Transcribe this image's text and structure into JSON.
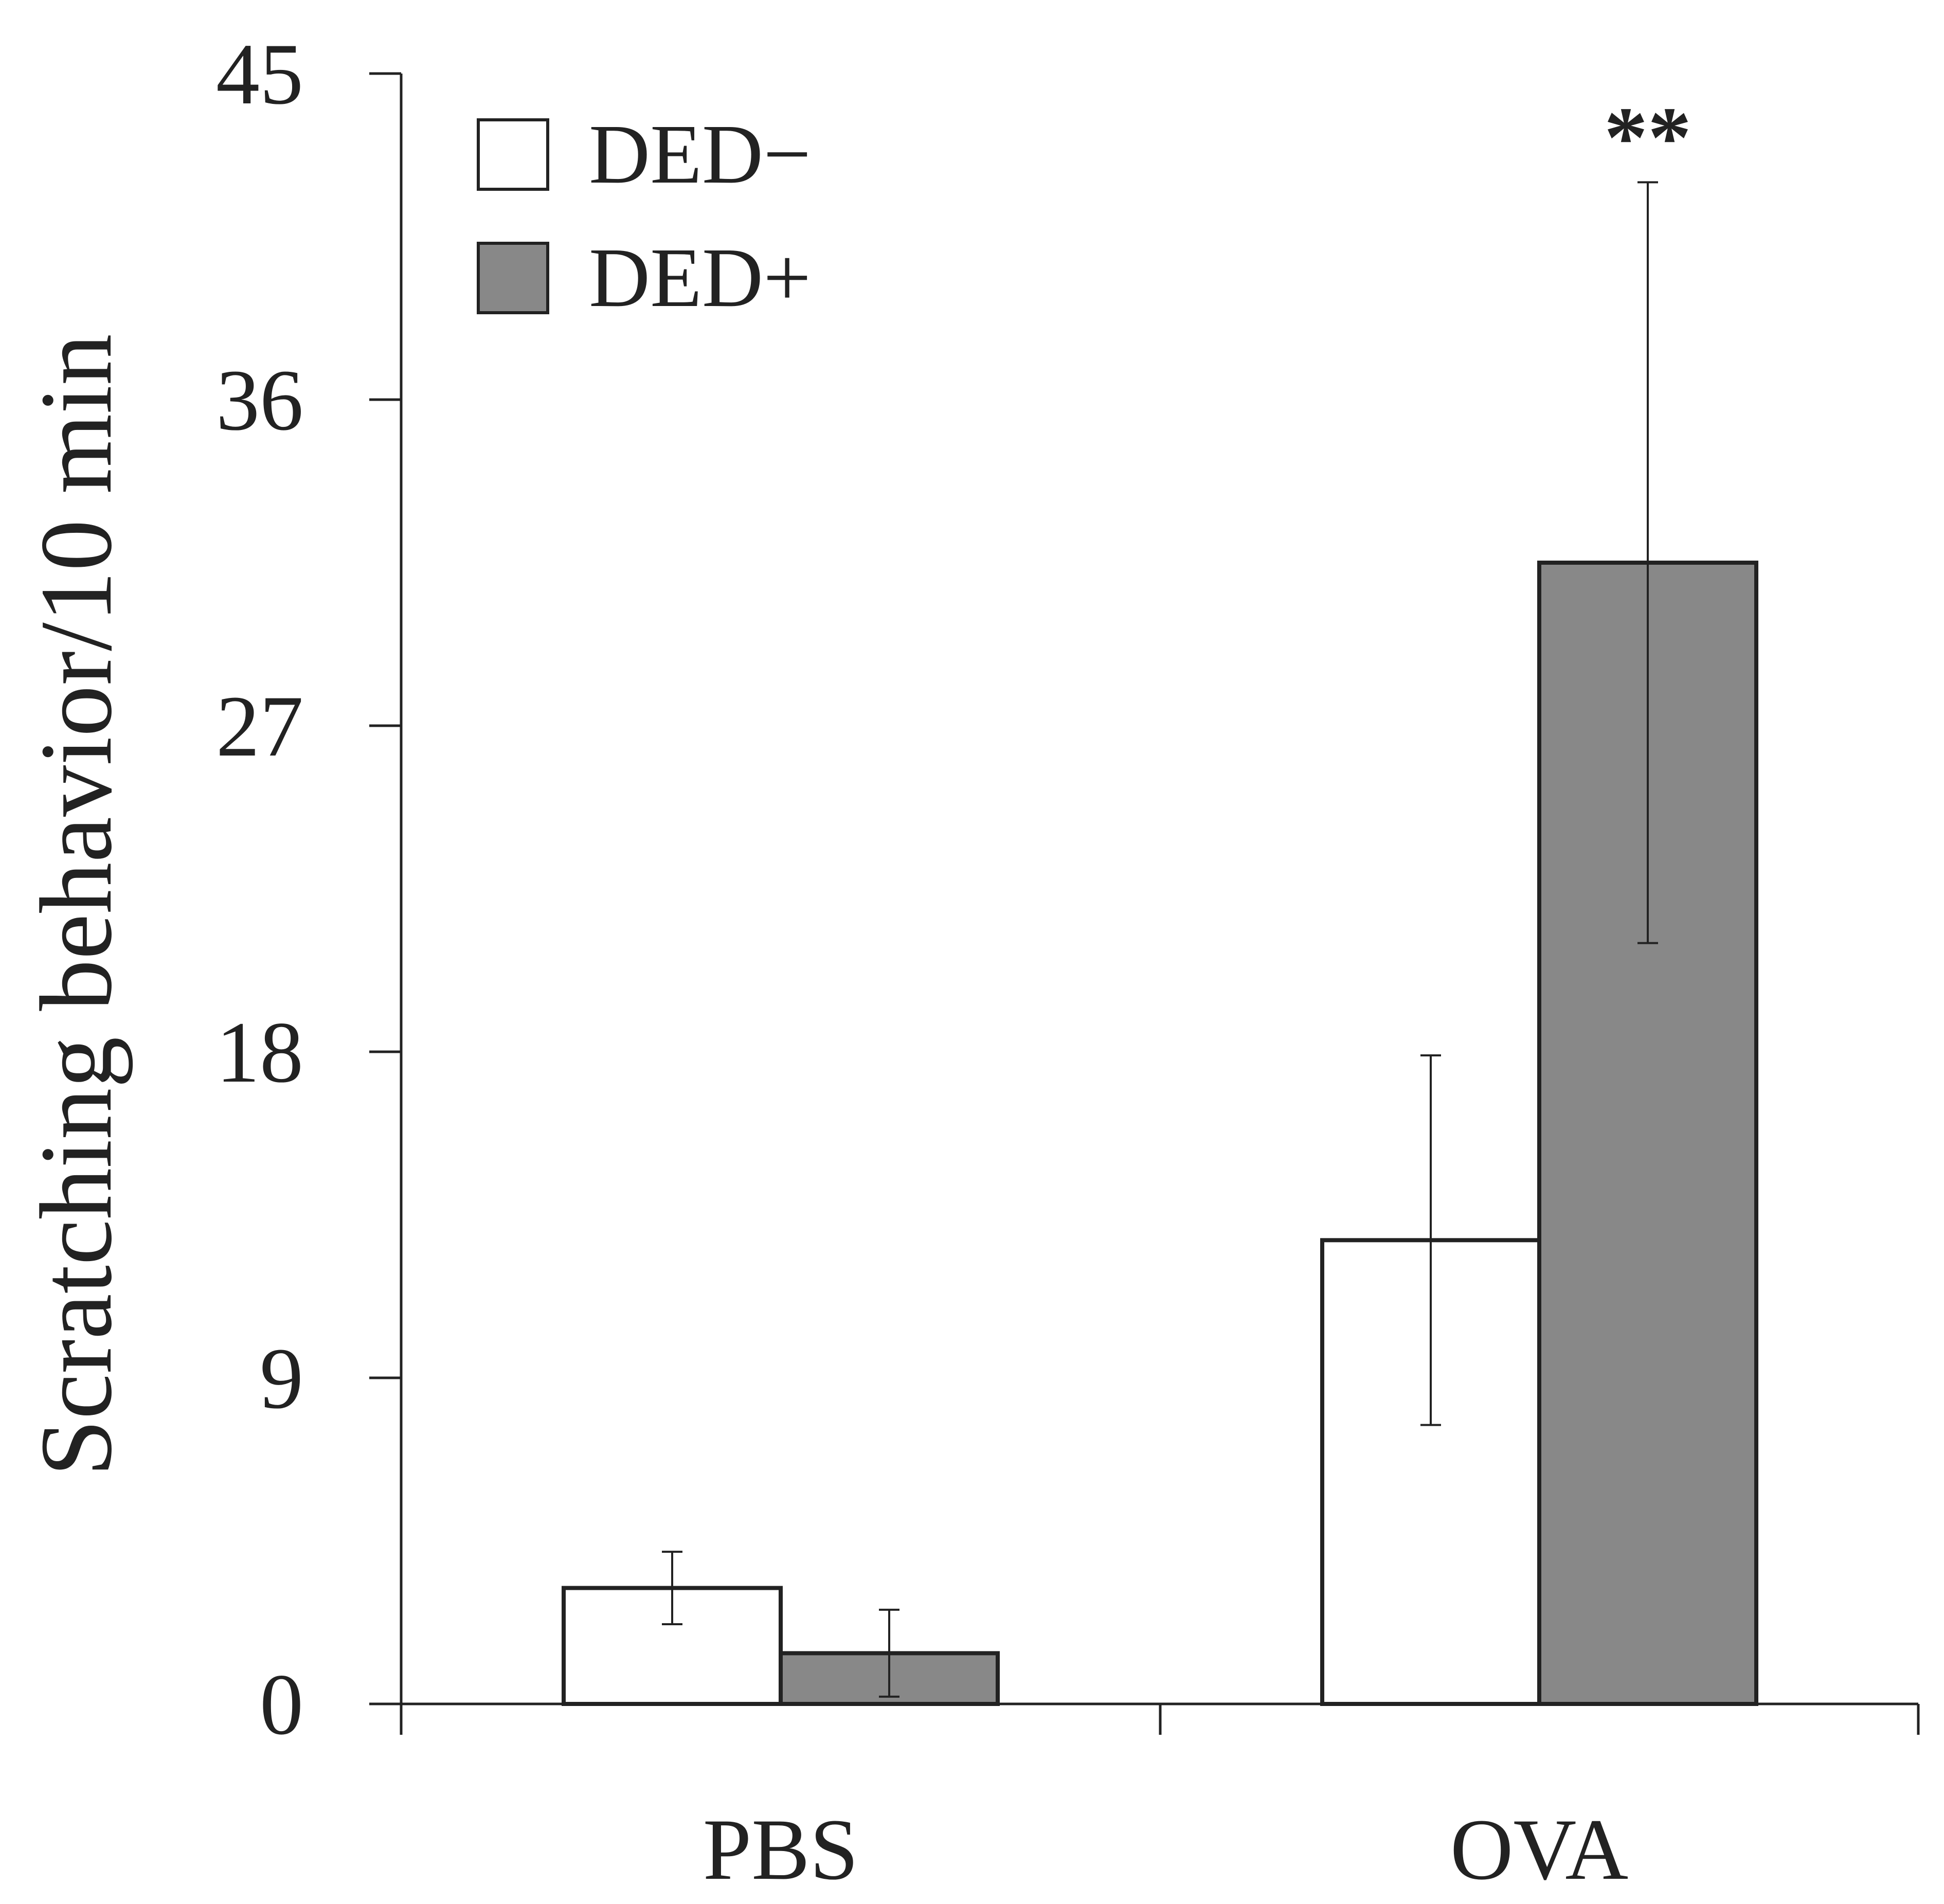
{
  "chart_data": {
    "type": "bar",
    "title": "",
    "xlabel": "",
    "ylabel": "Scratching behavior/10 min",
    "categories": [
      "PBS",
      "OVA"
    ],
    "series": [
      {
        "name": "DED−",
        "values": [
          3.2,
          12.8
        ],
        "errors": [
          1.0,
          5.1
        ],
        "color": "#ffffff"
      },
      {
        "name": "DED+",
        "values": [
          1.4,
          31.5
        ],
        "errors": [
          1.2,
          10.5
        ],
        "color": "#888888"
      }
    ],
    "ylim": [
      0,
      45
    ],
    "yticks": [
      "0",
      "9",
      "18",
      "27",
      "36",
      "45"
    ],
    "grid": false,
    "legend_position": "top-left",
    "annotations": [
      {
        "text": "**",
        "category": "OVA",
        "series": "DED+"
      }
    ]
  }
}
